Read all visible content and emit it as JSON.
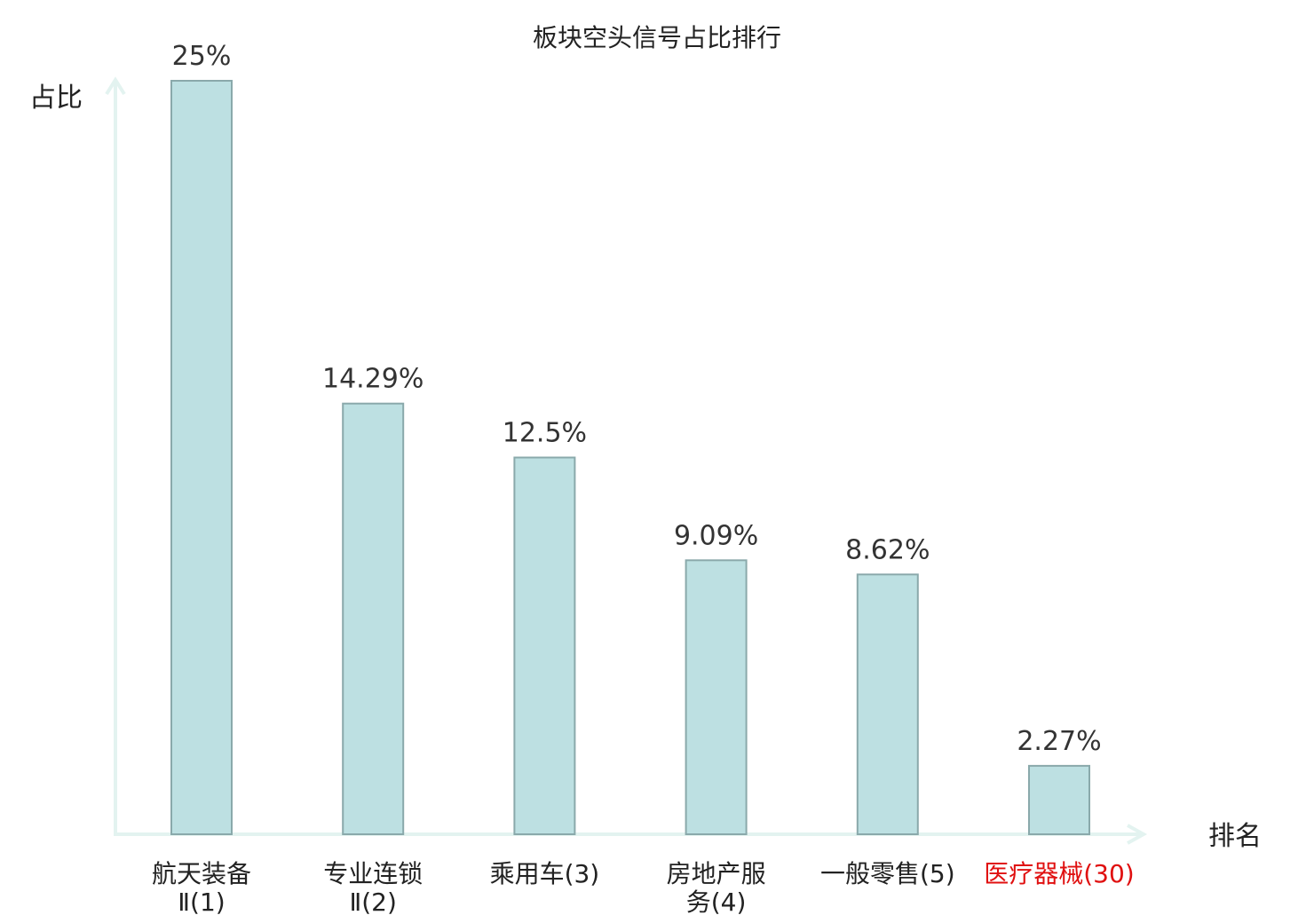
{
  "chart_data": {
    "type": "bar",
    "title": "板块空头信号占比排行",
    "ylabel": "占比",
    "xlabel": "排名",
    "ylim": [
      0,
      25
    ],
    "grid": false,
    "categories": [
      {
        "line1": "航天装备",
        "line2": "Ⅱ(1)",
        "highlight": false
      },
      {
        "line1": "专业连锁",
        "line2": "Ⅱ(2)",
        "highlight": false
      },
      {
        "line1": "乘用车(3)",
        "line2": "",
        "highlight": false
      },
      {
        "line1": "房地产服",
        "line2": "务(4)",
        "highlight": false
      },
      {
        "line1": "一般零售(5)",
        "line2": "",
        "highlight": false
      },
      {
        "line1": "医疗器械(30)",
        "line2": "",
        "highlight": true
      }
    ],
    "values": [
      25,
      14.29,
      12.5,
      9.09,
      8.62,
      2.27
    ],
    "value_labels": [
      "25%",
      "14.29%",
      "12.5%",
      "9.09%",
      "8.62%",
      "2.27%"
    ],
    "colors": {
      "bar_fill": "#bde0e2",
      "bar_stroke": "#8aa9ab",
      "axis": "#e3f3f0",
      "highlight_text": "#e01010",
      "text": "#222222"
    }
  }
}
